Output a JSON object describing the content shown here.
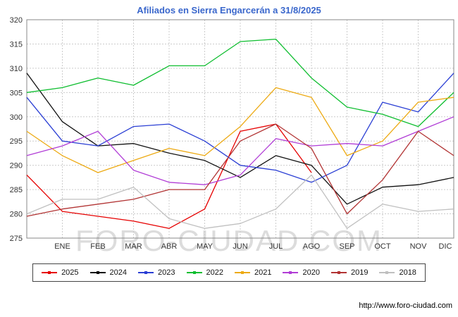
{
  "title": "Afiliados en Sierra Engarcerán a 31/8/2025",
  "watermark": "FORO-CIUDAD.COM",
  "footer_url": "http://www.foro-ciudad.com",
  "chart_data": {
    "type": "line",
    "title": "Afiliados en Sierra Engarcerán a 31/8/2025",
    "xlabel": "",
    "ylabel": "",
    "ylim": [
      275,
      320
    ],
    "ytick_step": 5,
    "yticks": [
      275,
      280,
      285,
      290,
      295,
      300,
      305,
      310,
      315,
      320
    ],
    "months": [
      "ENE",
      "FEB",
      "MAR",
      "ABR",
      "MAY",
      "JUN",
      "JUL",
      "AGO",
      "SEP",
      "OCT",
      "NOV",
      "DIC"
    ],
    "grid": true,
    "legend_position": "bottom",
    "series_note": "values[0] is the value at the left plot edge; values[1..12] correspond to ENE..DIC",
    "series": [
      {
        "name": "2025",
        "color": "#e60000",
        "values": [
          288,
          280.5,
          279.5,
          278.5,
          277,
          281,
          297,
          298.5,
          288.5
        ]
      },
      {
        "name": "2024",
        "color": "#111111",
        "values": [
          309,
          299,
          294,
          294.5,
          292.5,
          291,
          287.5,
          292,
          290,
          282,
          285.5,
          286,
          287.5
        ]
      },
      {
        "name": "2023",
        "color": "#2b3fd4",
        "values": [
          304,
          295,
          294,
          298,
          298.5,
          295,
          290,
          289,
          286.5,
          290,
          303,
          301,
          309
        ]
      },
      {
        "name": "2022",
        "color": "#0fbe30",
        "values": [
          305,
          306,
          308,
          306.5,
          310.5,
          310.5,
          315.5,
          316,
          308,
          302,
          300.5,
          298,
          305
        ]
      },
      {
        "name": "2021",
        "color": "#edaa13",
        "values": [
          297,
          292,
          288.5,
          291,
          293.5,
          292,
          298,
          306,
          304,
          292,
          295,
          303,
          304
        ]
      },
      {
        "name": "2020",
        "color": "#b13dd6",
        "values": [
          292,
          294,
          297,
          289,
          286.5,
          286,
          288,
          295.5,
          294,
          294.5,
          294,
          297,
          300
        ]
      },
      {
        "name": "2019",
        "color": "#b23434",
        "values": [
          279.5,
          281,
          282,
          283,
          285,
          285,
          295,
          298.5,
          293.5,
          280,
          287,
          297,
          292
        ]
      },
      {
        "name": "2018",
        "color": "#c0c0c0",
        "values": [
          280,
          283,
          283,
          285.5,
          279,
          277,
          278,
          281,
          288,
          277,
          282,
          280.5,
          281
        ]
      }
    ]
  }
}
